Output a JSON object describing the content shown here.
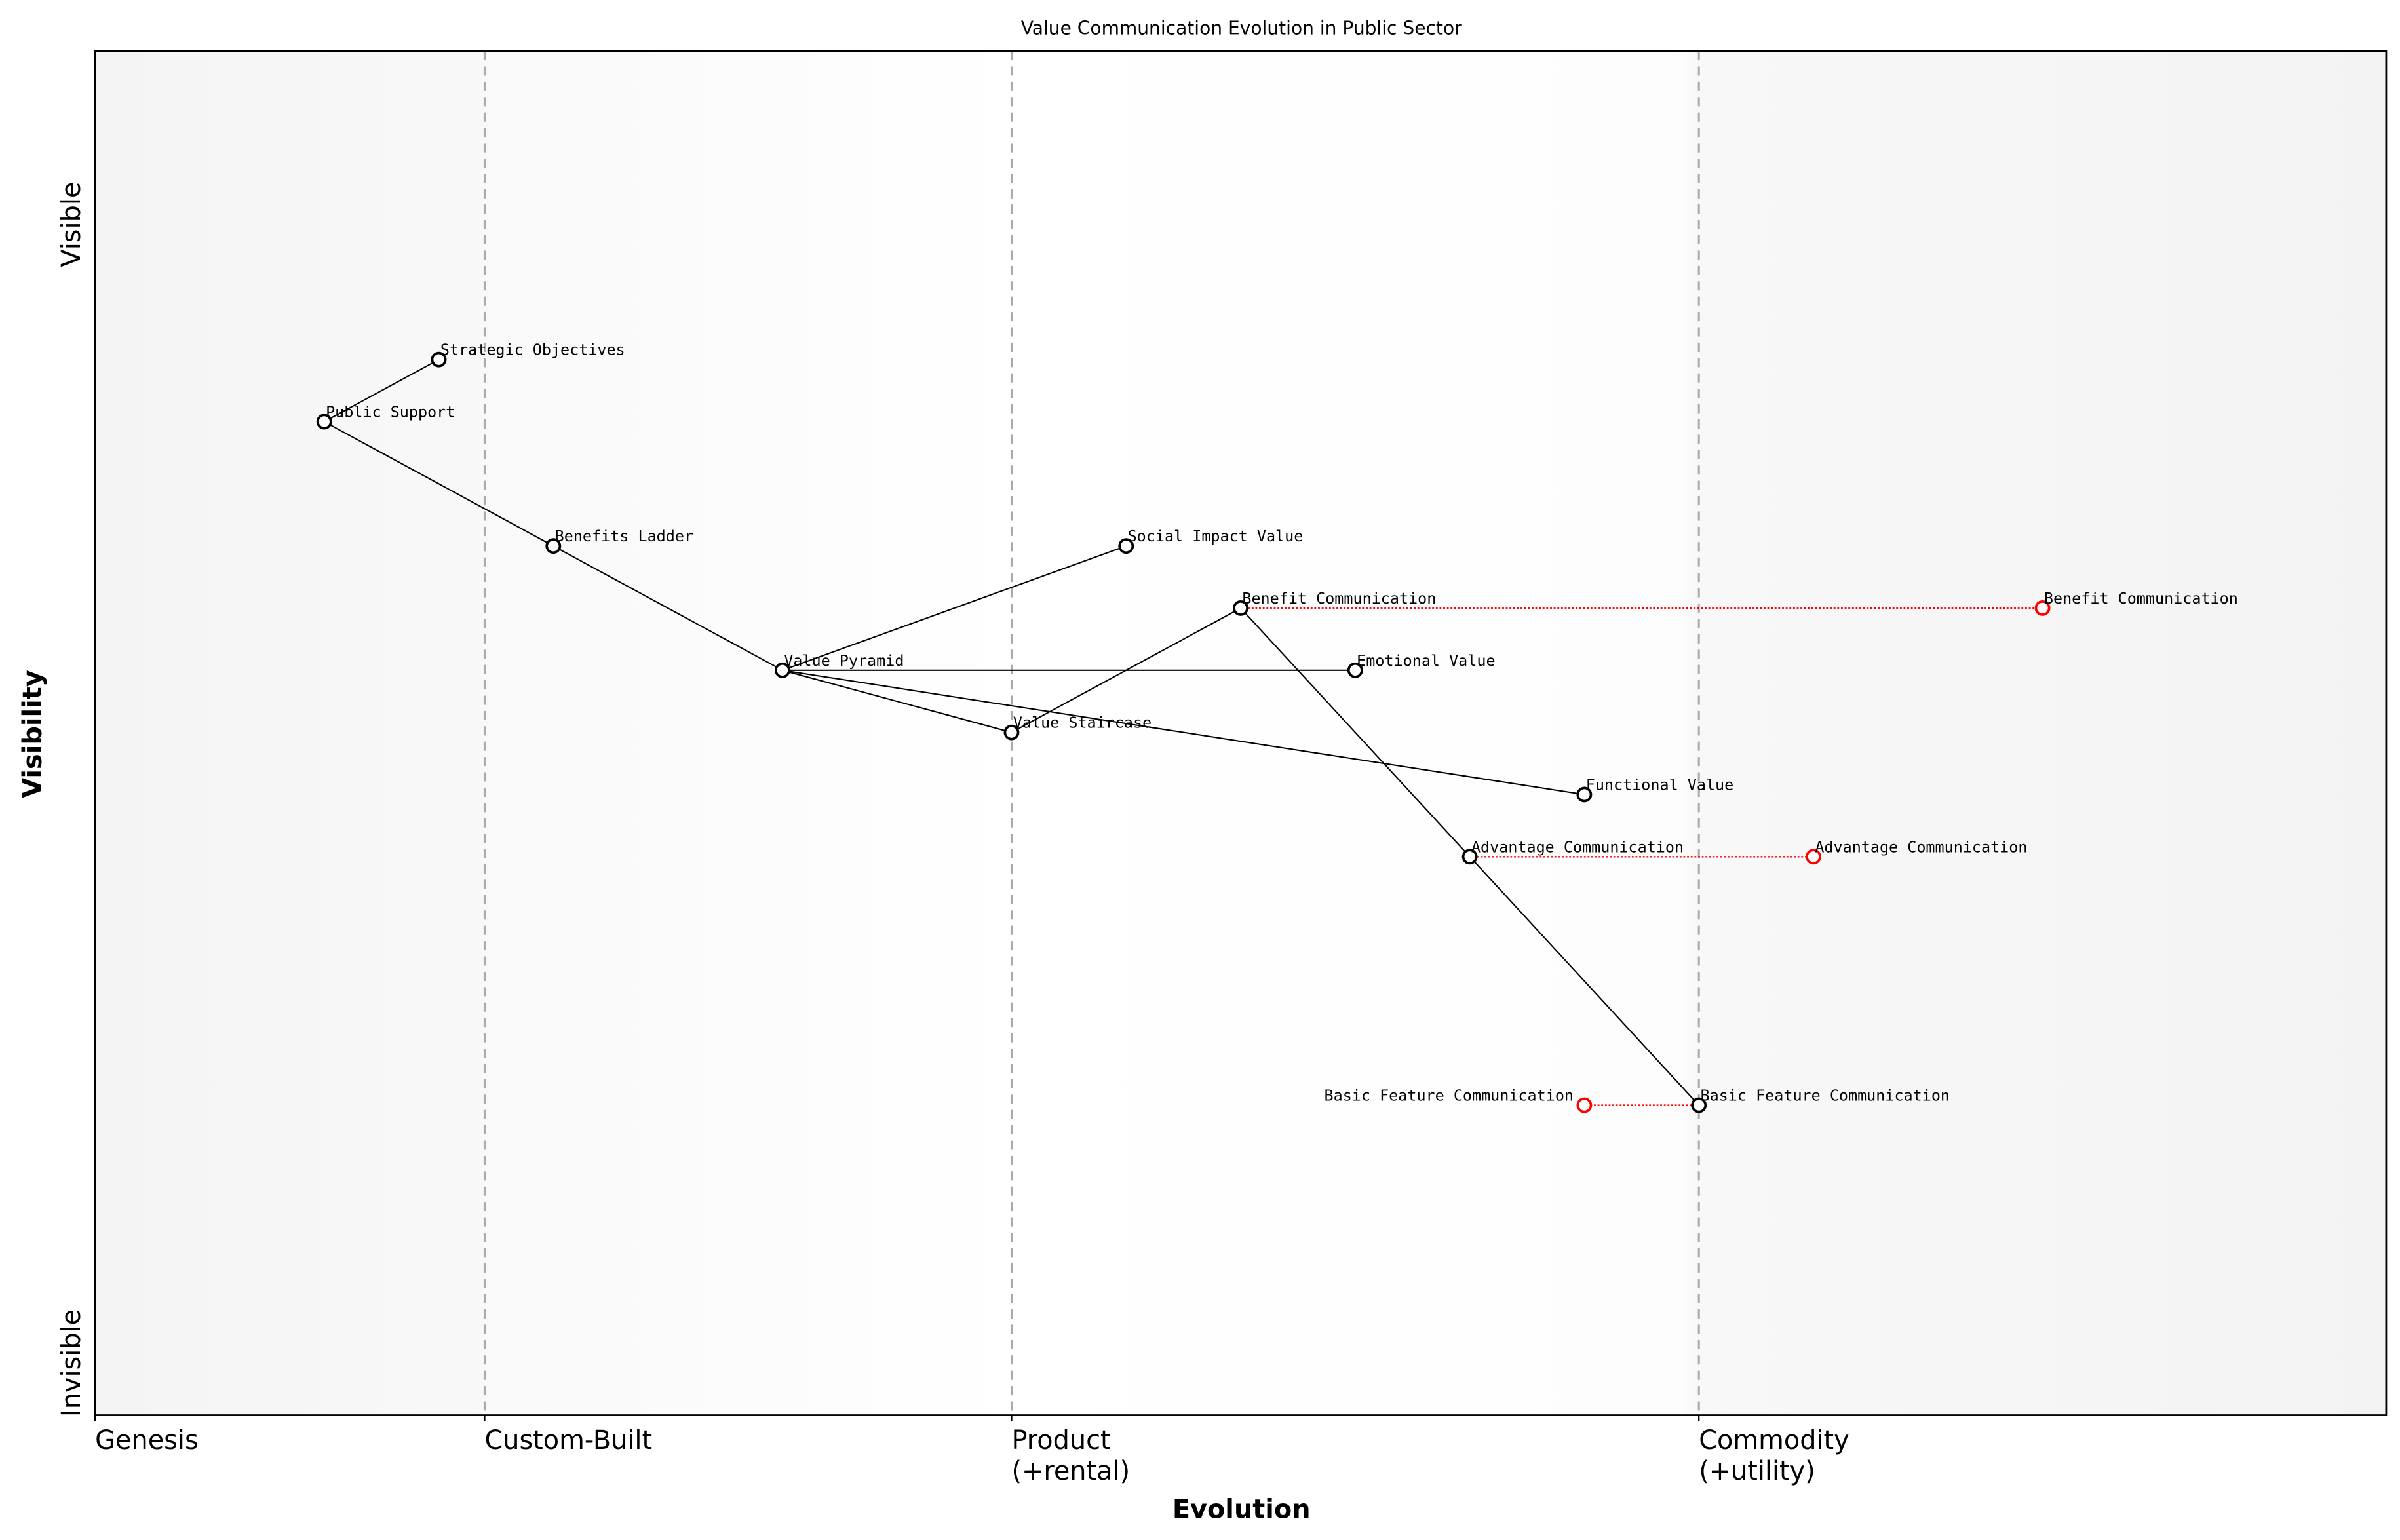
{
  "title": "Value Communication Evolution in Public Sector",
  "x_axis": {
    "label": "Evolution",
    "ticks": [
      {
        "value": 0.0,
        "lines": [
          "Genesis"
        ]
      },
      {
        "value": 0.17,
        "lines": [
          "Custom-Built"
        ]
      },
      {
        "value": 0.4,
        "lines": [
          "Product",
          "(+rental)"
        ]
      },
      {
        "value": 0.7,
        "lines": [
          "Commodity",
          "(+utility)"
        ]
      }
    ],
    "stage_boundaries": [
      0.17,
      0.4,
      0.7
    ],
    "range": [
      0,
      1
    ]
  },
  "y_axis": {
    "label": "Visibility",
    "top_label": "Visible",
    "bottom_label": "Invisible"
  },
  "colors": {
    "node": "#000000",
    "evolved_node": "#ff0000",
    "link": "#000000",
    "evolution_link": "#ff0000",
    "boundary": "#aaaaaa"
  },
  "components": [
    {
      "name": "Strategic Objectives",
      "evolution": 0.15,
      "visibility": 0.9
    },
    {
      "name": "Public Support",
      "evolution": 0.1,
      "visibility": 0.85
    },
    {
      "name": "Benefits Ladder",
      "evolution": 0.2,
      "visibility": 0.75
    },
    {
      "name": "Value Pyramid",
      "evolution": 0.3,
      "visibility": 0.65
    },
    {
      "name": "Social Impact Value",
      "evolution": 0.45,
      "visibility": 0.75
    },
    {
      "name": "Benefit Communication",
      "evolution": 0.5,
      "visibility": 0.7
    },
    {
      "name": "Emotional Value",
      "evolution": 0.55,
      "visibility": 0.65
    },
    {
      "name": "Value Staircase",
      "evolution": 0.4,
      "visibility": 0.6
    },
    {
      "name": "Functional Value",
      "evolution": 0.65,
      "visibility": 0.55
    },
    {
      "name": "Advantage Communication",
      "evolution": 0.6,
      "visibility": 0.5
    },
    {
      "name": "Basic Feature Communication",
      "evolution": 0.7,
      "visibility": 0.3
    }
  ],
  "links": [
    [
      "Public Support",
      "Strategic Objectives"
    ],
    [
      "Public Support",
      "Benefits Ladder"
    ],
    [
      "Benefits Ladder",
      "Value Pyramid"
    ],
    [
      "Value Pyramid",
      "Social Impact Value"
    ],
    [
      "Value Pyramid",
      "Emotional Value"
    ],
    [
      "Value Pyramid",
      "Value Staircase"
    ],
    [
      "Value Pyramid",
      "Functional Value"
    ],
    [
      "Value Staircase",
      "Benefit Communication"
    ],
    [
      "Benefit Communication",
      "Advantage Communication"
    ],
    [
      "Advantage Communication",
      "Basic Feature Communication"
    ]
  ],
  "evolutions": [
    {
      "name": "Benefit Communication",
      "from": 0.5,
      "to": 0.85,
      "visibility": 0.7
    },
    {
      "name": "Advantage Communication",
      "from": 0.6,
      "to": 0.75,
      "visibility": 0.5
    },
    {
      "name": "Basic Feature Communication",
      "from": 0.7,
      "to": 0.65,
      "visibility": 0.3
    }
  ]
}
